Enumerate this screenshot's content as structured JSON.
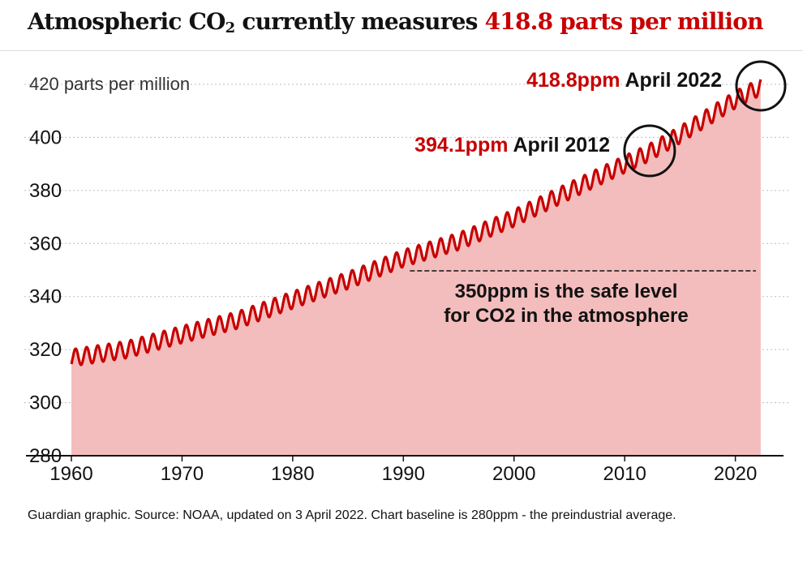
{
  "title": {
    "prefix": "Atmospheric CO",
    "subscript": "2",
    "middle": " currently measures ",
    "highlight": "418.8 parts per million"
  },
  "footnote": "Guardian graphic. Source: NOAA, updated on 3 April 2022. Chart baseline is 280ppm - the preindustrial average.",
  "colors": {
    "line": "#c70000",
    "fill": "#f4bdbd",
    "highlight": "#c70000",
    "text": "#121212",
    "grid": "#bdbdbd"
  },
  "chart_data": {
    "type": "area",
    "title": "Atmospheric CO2 currently measures 418.8 parts per million",
    "ylabel": "parts per million",
    "ylim": [
      280,
      420
    ],
    "yticks": [
      280,
      300,
      320,
      340,
      360,
      380,
      400,
      420
    ],
    "ytick_labels": [
      "280",
      "300",
      "320",
      "340",
      "360",
      "380",
      "400",
      "420 parts per million"
    ],
    "xlim": [
      1960,
      2022.3
    ],
    "xticks": [
      1960,
      1970,
      1980,
      1990,
      2000,
      2010,
      2020
    ],
    "xtick_labels": [
      "1960",
      "1970",
      "1980",
      "1990",
      "2000",
      "2010",
      "2020"
    ],
    "grid": true,
    "series": [
      {
        "x": [
          1960,
          1965,
          1970,
          1975,
          1980,
          1985,
          1990,
          1995,
          2000,
          2005,
          2010,
          2012,
          2015,
          2020,
          2022
        ],
        "values": [
          316.9,
          320.0,
          325.7,
          331.1,
          338.7,
          346.1,
          354.4,
          360.8,
          369.6,
          379.8,
          389.9,
          393.8,
          401.0,
          414.2,
          418.5
        ]
      }
    ],
    "seasonal_amplitude_ppm": 3.2,
    "annotations": [
      {
        "value_label": "418.8ppm",
        "date_label": "April 2022",
        "x": 2022.25,
        "y": 418.8
      },
      {
        "value_label": "394.1ppm",
        "date_label": "April 2012",
        "x": 2012.25,
        "y": 394.1
      }
    ],
    "reference_line": {
      "y": 350,
      "x": [
        1990,
        2022
      ],
      "label_lines": [
        "350ppm is the safe level",
        "for CO2 in the atmosphere"
      ]
    }
  }
}
